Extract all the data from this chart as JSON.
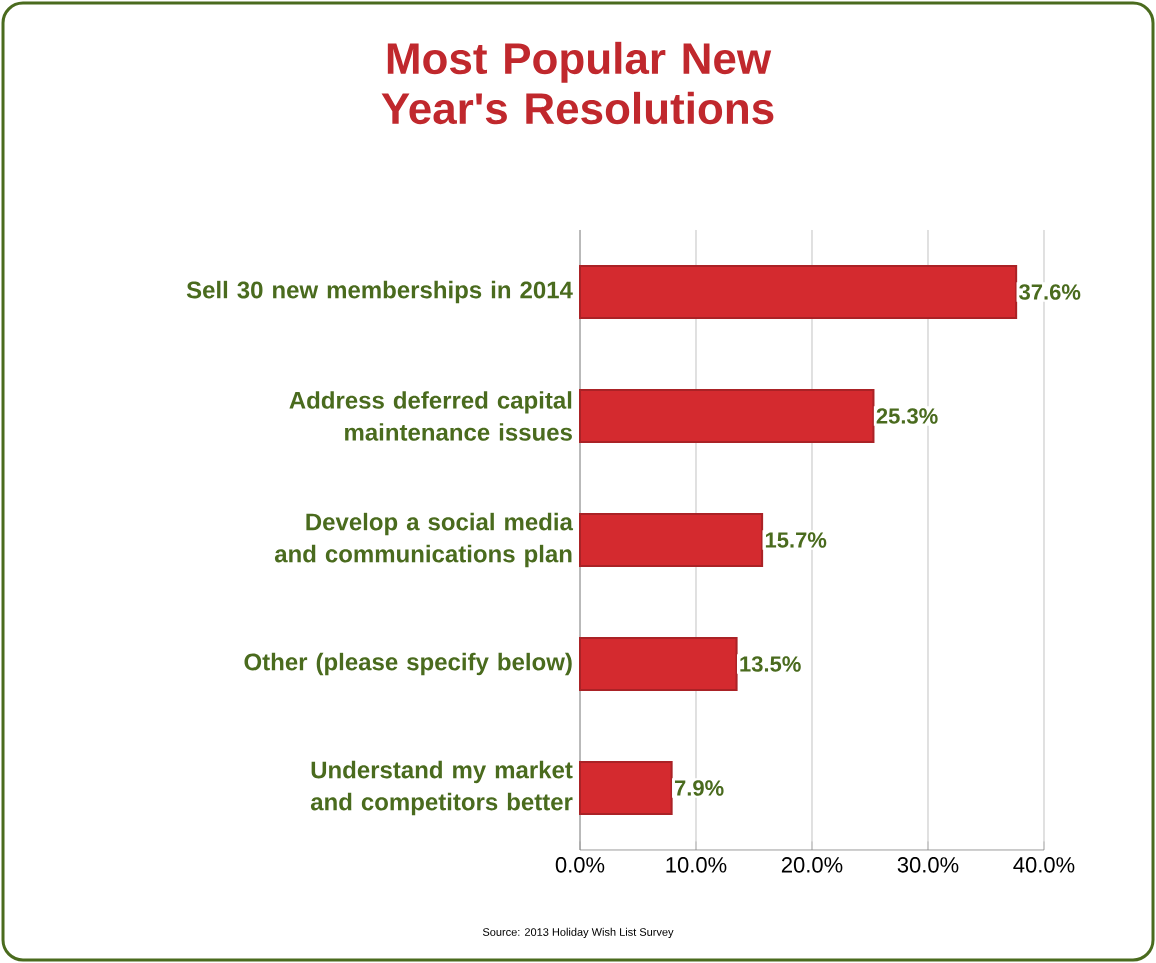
{
  "chart_data": {
    "type": "bar",
    "orientation": "horizontal",
    "title": "Most Popular New Year's Resolutions",
    "categories": [
      "Sell 30 new memberships in 2014",
      "Address deferred capital maintenance issues",
      "Develop a social media and communications plan",
      "Other (please specify below)",
      "Understand my market and competitors better"
    ],
    "values": [
      37.6,
      25.3,
      15.7,
      13.5,
      7.9
    ],
    "value_labels": [
      "37.6%",
      "25.3%",
      "15.7%",
      "13.5%",
      "7.9%"
    ],
    "color": "#d42a2f",
    "xlim": [
      0,
      40
    ],
    "xticks": [
      {
        "value": 0,
        "label": "0.0%"
      },
      {
        "value": 10,
        "label": "10.0%"
      },
      {
        "value": 20,
        "label": "20.0%"
      },
      {
        "value": 30,
        "label": "30.0%"
      },
      {
        "value": 40,
        "label": "40.0%"
      }
    ],
    "grid": "x",
    "annotations": [
      "Source: 2013 Holiday Wish List Survey"
    ]
  }
}
